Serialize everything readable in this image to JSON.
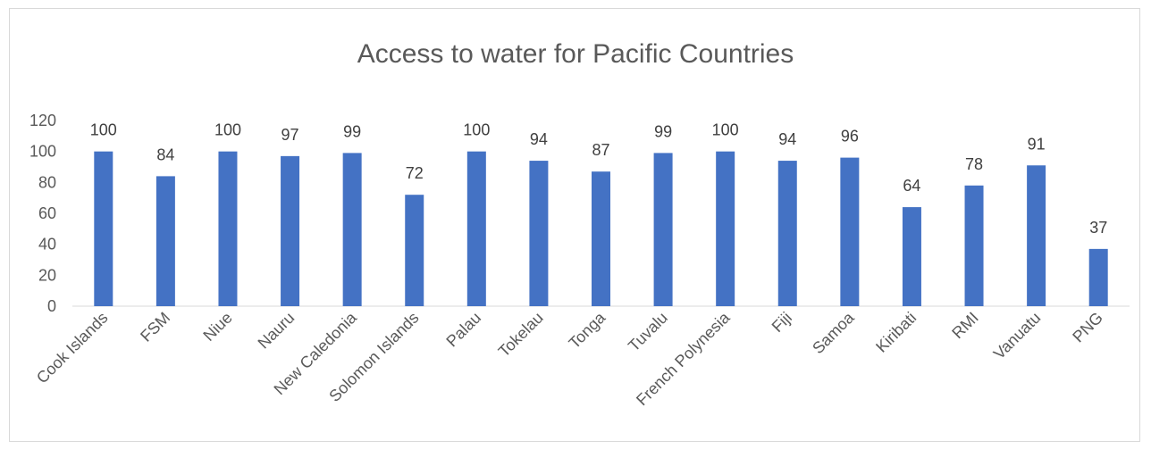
{
  "chart_data": {
    "type": "bar",
    "title": "Access to water for Pacific Countries",
    "xlabel": "",
    "ylabel": "",
    "categories": [
      "Cook Islands",
      "FSM",
      "Niue",
      "Nauru",
      "New Caledonia",
      "Solomon Islands",
      "Palau",
      "Tokelau",
      "Tonga",
      "Tuvalu",
      "French Polynesia",
      "Fiji",
      "Samoa",
      "Kiribati",
      "RMI",
      "Vanuatu",
      "PNG"
    ],
    "values": [
      100,
      84,
      100,
      97,
      99,
      72,
      100,
      94,
      87,
      99,
      100,
      94,
      96,
      64,
      78,
      91,
      37
    ],
    "ylim": [
      0,
      120
    ],
    "yticks": [
      0,
      20,
      40,
      60,
      80,
      100,
      120
    ],
    "grid": false,
    "legend": "none",
    "bar_color": "#4472c4",
    "data_labels": true
  }
}
